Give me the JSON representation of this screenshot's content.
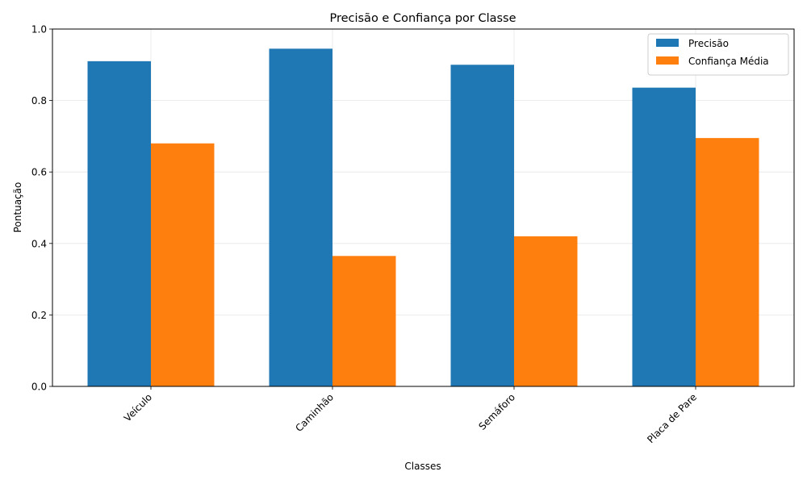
{
  "chart_data": {
    "type": "bar",
    "title": "Precisão e Confiança por Classe",
    "xlabel": "Classes",
    "ylabel": "Pontuação",
    "categories": [
      "Veículo",
      "Caminhão",
      "Semáforo",
      "Placa de Pare"
    ],
    "series": [
      {
        "name": "Precisão",
        "values": [
          0.91,
          0.945,
          0.9,
          0.836
        ],
        "color": "#1f77b4"
      },
      {
        "name": "Confiança Média",
        "values": [
          0.68,
          0.365,
          0.42,
          0.695
        ],
        "color": "#ff7f0e"
      }
    ],
    "ylim": [
      0,
      1.0
    ],
    "yticks": [
      "0.0",
      "0.2",
      "0.4",
      "0.6",
      "0.8",
      "1.0"
    ],
    "grid": true,
    "legend_position": "top-right"
  }
}
